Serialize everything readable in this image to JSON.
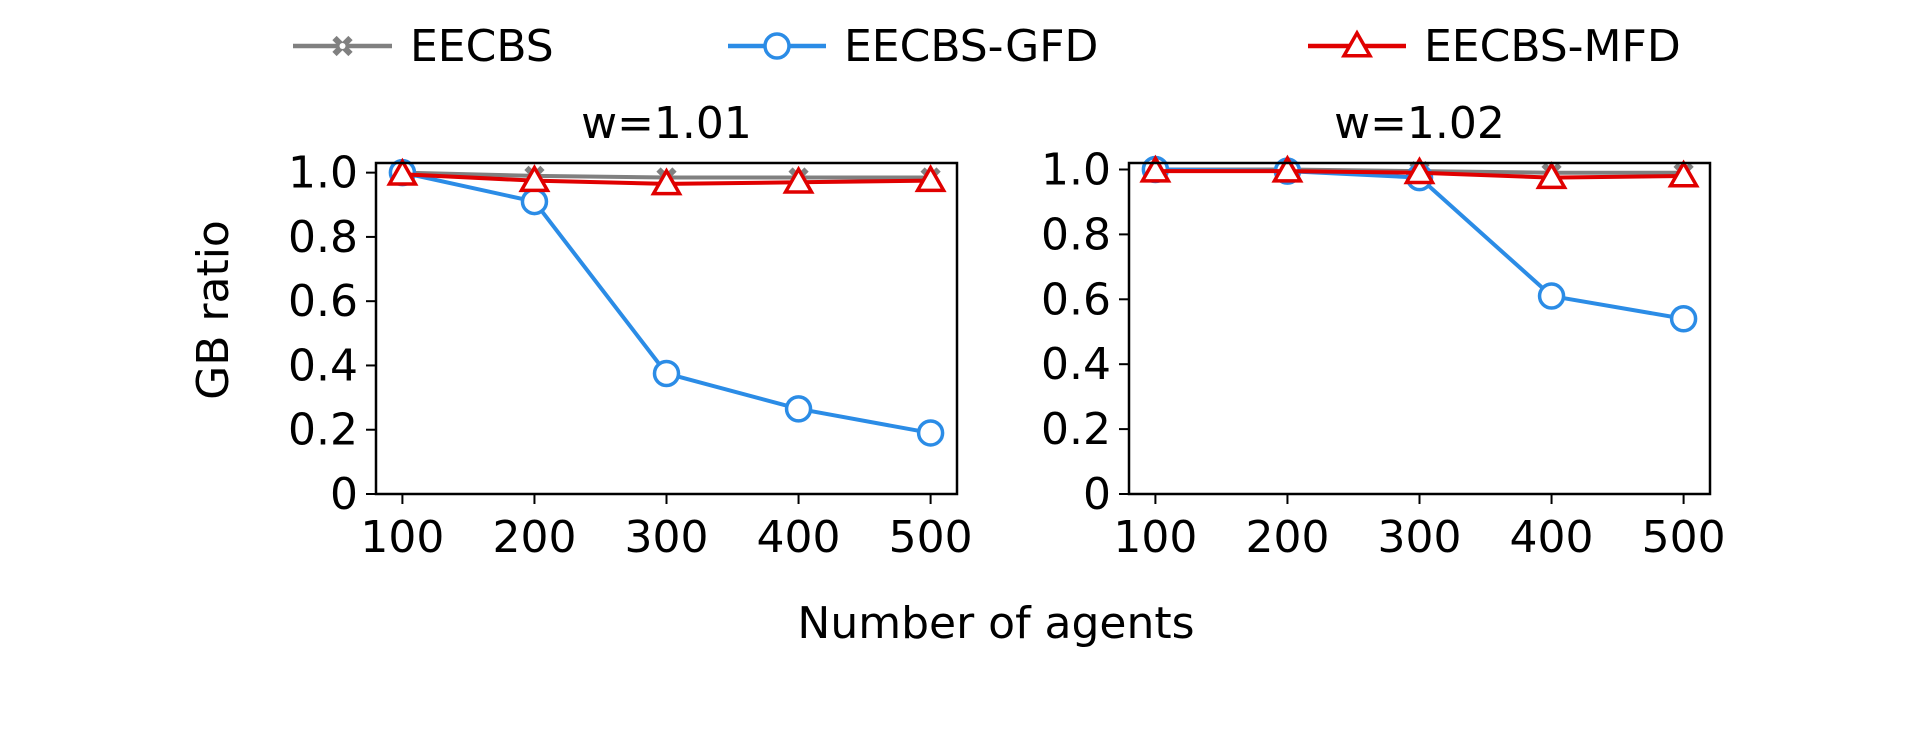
{
  "chart_data": {
    "type": "line",
    "xlabel": "Number of agents",
    "ylabel": "GB ratio",
    "legend": {
      "placement": "top",
      "entries": [
        "EECBS",
        "EECBS-GFD",
        "EECBS-MFD"
      ]
    },
    "series_styles": [
      {
        "name": "EECBS",
        "color": "#808080",
        "marker": "x-filled"
      },
      {
        "name": "EECBS-GFD",
        "color": "#2b8ce6",
        "marker": "circle"
      },
      {
        "name": "EECBS-MFD",
        "color": "#e00000",
        "marker": "triangle"
      }
    ],
    "panels": [
      {
        "title": "w=1.01",
        "x": [
          100,
          200,
          300,
          400,
          500
        ],
        "xticks": [
          "100",
          "200",
          "300",
          "400",
          "500"
        ],
        "yticks": [
          "0",
          "0.2",
          "0.4",
          "0.6",
          "0.8",
          "1.0"
        ],
        "ylim": [
          0,
          1.03
        ],
        "xlim": [
          80,
          520
        ],
        "series": [
          {
            "name": "EECBS",
            "values": [
              1.0,
              0.99,
              0.985,
              0.985,
              0.985
            ]
          },
          {
            "name": "EECBS-GFD",
            "values": [
              1.0,
              0.91,
              0.375,
              0.265,
              0.19
            ]
          },
          {
            "name": "EECBS-MFD",
            "values": [
              0.995,
              0.975,
              0.965,
              0.97,
              0.975
            ]
          }
        ]
      },
      {
        "title": "w=1.02",
        "x": [
          100,
          200,
          300,
          400,
          500
        ],
        "xticks": [
          "100",
          "200",
          "300",
          "400",
          "500"
        ],
        "yticks": [
          "0",
          "0.2",
          "0.4",
          "0.6",
          "0.8",
          "1.0"
        ],
        "ylim": [
          0,
          1.02
        ],
        "xlim": [
          80,
          520
        ],
        "series": [
          {
            "name": "EECBS",
            "values": [
              1.0,
              1.0,
              0.995,
              0.99,
              0.99
            ]
          },
          {
            "name": "EECBS-GFD",
            "values": [
              1.0,
              0.995,
              0.975,
              0.61,
              0.54
            ]
          },
          {
            "name": "EECBS-MFD",
            "values": [
              0.995,
              0.995,
              0.99,
              0.975,
              0.98
            ]
          }
        ]
      }
    ]
  }
}
